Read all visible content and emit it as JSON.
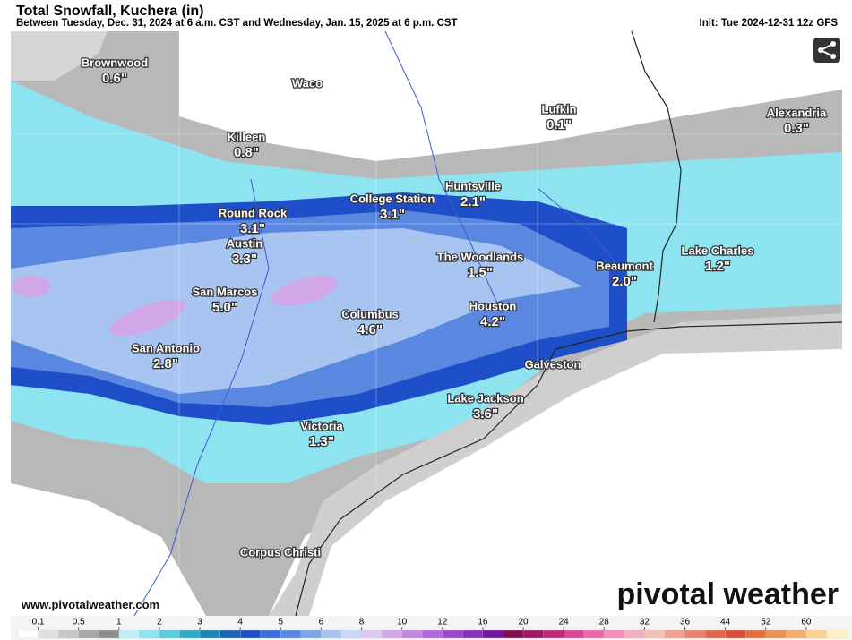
{
  "header": {
    "title": "Total Snowfall, Kuchera (in)",
    "subtitle": "Between Tuesday, Dec. 31, 2024 at 6 a.m. CST and Wednesday, Jan. 15, 2025 at 6 p.m. CST",
    "init": "Init: Tue 2024-12-31 12z GFS"
  },
  "map": {
    "cities": [
      {
        "name": "Brownwood",
        "value": 0.6,
        "value_label": "0.6\""
      },
      {
        "name": "Waco"
      },
      {
        "name": "Killeen",
        "value": 0.8,
        "value_label": "0.8\""
      },
      {
        "name": "Lufkin",
        "value": 0.1,
        "value_label": "0.1\""
      },
      {
        "name": "Alexandria",
        "value": 0.3,
        "value_label": "0.3\""
      },
      {
        "name": "College Station",
        "value": 3.1,
        "value_label": "3.1\""
      },
      {
        "name": "Huntsville",
        "value": 2.1,
        "value_label": "2.1\""
      },
      {
        "name": "Round Rock",
        "value": 3.1,
        "value_label": "3.1\""
      },
      {
        "name": "Austin",
        "value": 3.3,
        "value_label": "3.3\""
      },
      {
        "name": "The Woodlands",
        "value": 1.5,
        "value_label": "1.5\""
      },
      {
        "name": "Beaumont",
        "value": 2.0,
        "value_label": "2.0\""
      },
      {
        "name": "Lake Charles",
        "value": 1.2,
        "value_label": "1.2\""
      },
      {
        "name": "San Marcos",
        "value": 5.0,
        "value_label": "5.0\""
      },
      {
        "name": "Columbus",
        "value": 4.6,
        "value_label": "4.6\""
      },
      {
        "name": "Houston",
        "value": 4.2,
        "value_label": "4.2\""
      },
      {
        "name": "San Antonio",
        "value": 2.8,
        "value_label": "2.8\""
      },
      {
        "name": "Galveston"
      },
      {
        "name": "Lake Jackson",
        "value": 3.6,
        "value_label": "3.6\""
      },
      {
        "name": "Victoria",
        "value": 1.3,
        "value_label": "1.3\""
      },
      {
        "name": "Corpus Christi"
      }
    ]
  },
  "legend": {
    "ticks": [
      0.1,
      0.5,
      1,
      2,
      3,
      4,
      5,
      6,
      8,
      10,
      12,
      16,
      20,
      24,
      28,
      32,
      36,
      44,
      52,
      60
    ],
    "colors": [
      "#ffffff",
      "#e0e0e0",
      "#c8c8c8",
      "#a8a8a8",
      "#8c8c8c",
      "#bff0f8",
      "#8ee3f0",
      "#5ccbe0",
      "#30a8c8",
      "#1f86b0",
      "#1c63b0",
      "#1f4fc8",
      "#3a6ed8",
      "#5a88e0",
      "#7fa4e8",
      "#a8c4f0",
      "#c8d8f5",
      "#dcc8f0",
      "#d0a8e8",
      "#c088e0",
      "#b068d8",
      "#9c48c8",
      "#8830b8",
      "#7018a0",
      "#801050",
      "#a01860",
      "#c02878",
      "#d84890",
      "#e868a8",
      "#f090b8",
      "#f0b0c0",
      "#f4c0b8",
      "#f0a090",
      "#e88070",
      "#e06850",
      "#d85038",
      "#e07040",
      "#e89058",
      "#f0b070",
      "#f8d090",
      "#fff0c0"
    ]
  },
  "footer": {
    "url": "www.pivotalweather.com",
    "brand": "pivotal weather"
  }
}
